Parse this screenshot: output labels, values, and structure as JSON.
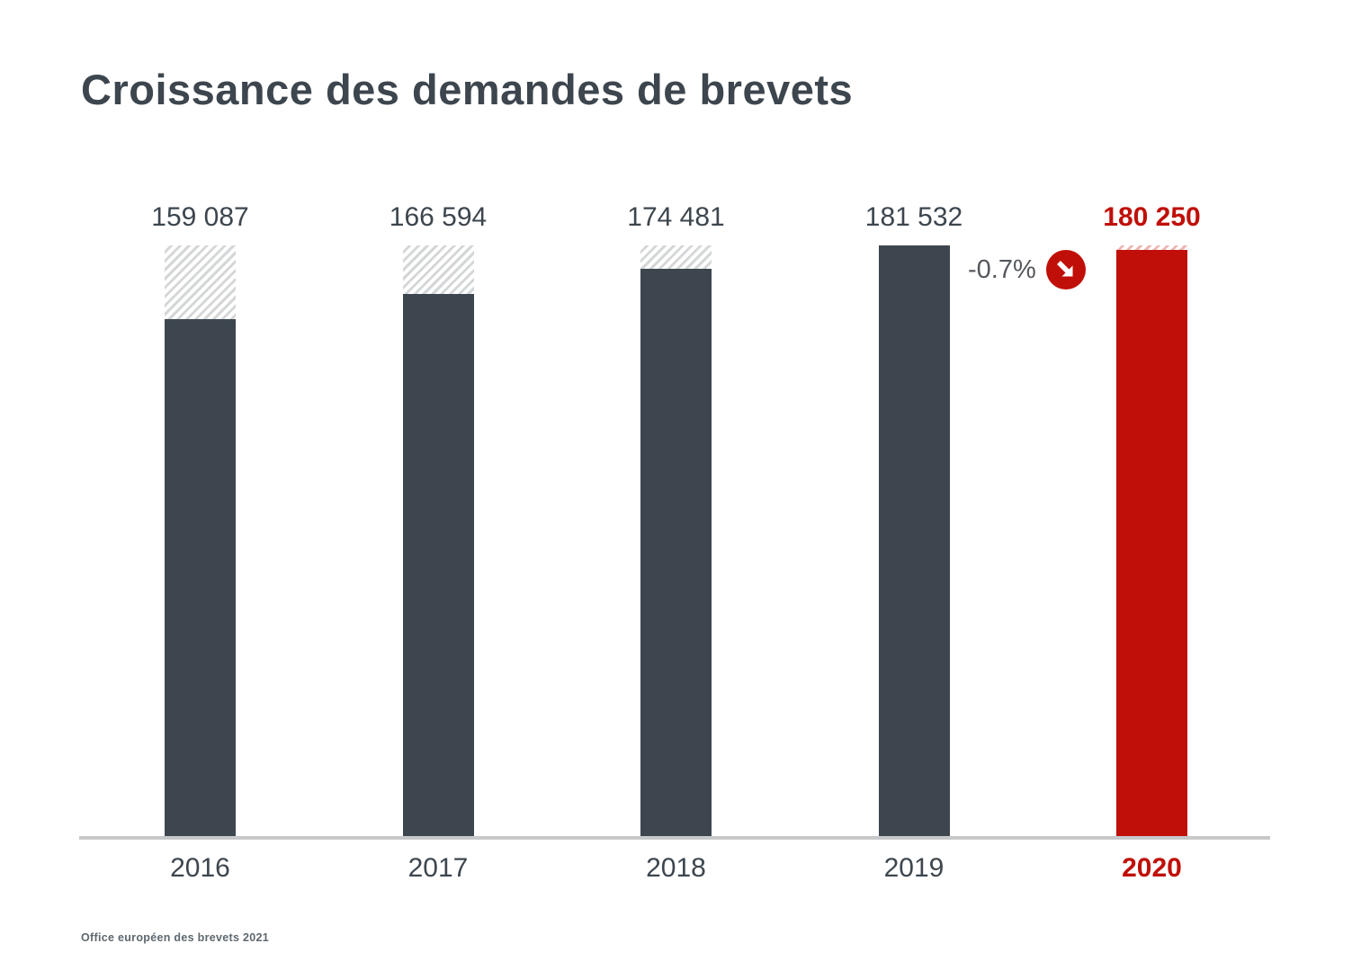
{
  "title": "Croissance des demandes de brevets",
  "source_note": "Office européen des brevets 2021",
  "colors": {
    "text": "#3d464e",
    "bar": "#3d464e",
    "highlight": "#c00f08",
    "axis": "#c6c8ca",
    "annotation_text": "#54585d"
  },
  "chart_data": {
    "type": "bar",
    "title": "Croissance des demandes de brevets",
    "categories": [
      "2016",
      "2017",
      "2018",
      "2019",
      "2020"
    ],
    "values": [
      159087,
      166594,
      174481,
      181532,
      180250
    ],
    "value_labels": [
      "159 087",
      "166 594",
      "174 481",
      "181 532",
      "180 250"
    ],
    "ylim": [
      0,
      181532
    ],
    "reference_max": 181532,
    "highlight_index": 4,
    "grid": false,
    "legend": false,
    "hatch_style": "gap-to-reference-max-hatched",
    "annotation": {
      "text": "-0.7%",
      "icon": "arrow-down-right-icon",
      "applies_to": "2020"
    }
  }
}
